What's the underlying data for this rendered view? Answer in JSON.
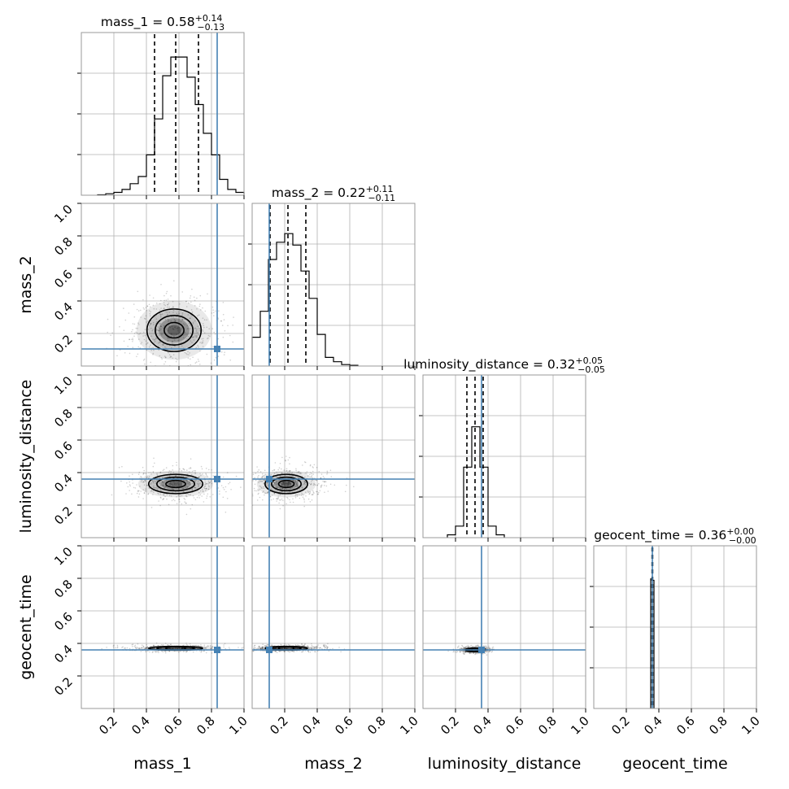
{
  "chart_data": {
    "type": "corner",
    "parameters": [
      "mass_1",
      "mass_2",
      "luminosity_distance",
      "geocent_time"
    ],
    "axis_labels": [
      "mass_1",
      "mass_2",
      "luminosity_distance",
      "geocent_time"
    ],
    "range": [
      0,
      1
    ],
    "ticks": [
      0.2,
      0.4,
      0.6,
      0.8,
      1.0
    ],
    "tick_labels": [
      "0.2",
      "0.4",
      "0.6",
      "0.8",
      "1.0"
    ],
    "grid": true,
    "colors": {
      "truth": "#4682b4",
      "hist": "#000000",
      "quantile": "#000000",
      "grid": "#b0b0b0",
      "frame": "#999999"
    },
    "truths": [
      0.835,
      0.105,
      0.36,
      0.36
    ],
    "summaries": [
      {
        "param": "mass_1",
        "prefix": "mass_1 = ",
        "median": "0.58",
        "plus": "+0.14",
        "minus": "−0.13",
        "quantiles": [
          0.45,
          0.58,
          0.72
        ]
      },
      {
        "param": "mass_2",
        "prefix": "mass_2 = ",
        "median": "0.22",
        "plus": "+0.11",
        "minus": "−0.11",
        "quantiles": [
          0.11,
          0.22,
          0.33
        ]
      },
      {
        "param": "luminosity_distance",
        "prefix": "luminosity_distance = ",
        "median": "0.32",
        "plus": "+0.05",
        "minus": "−0.05",
        "quantiles": [
          0.27,
          0.32,
          0.37
        ]
      },
      {
        "param": "geocent_time",
        "prefix": "geocent_time = ",
        "median": "0.36",
        "plus": "+0.00",
        "minus": "−0.00",
        "quantiles": [
          0.358,
          0.36,
          0.362
        ]
      }
    ],
    "histograms": [
      {
        "param": "mass_1",
        "bin_edges": [
          0.1,
          0.15,
          0.2,
          0.25,
          0.3,
          0.35,
          0.4,
          0.45,
          0.5,
          0.55,
          0.6,
          0.65,
          0.7,
          0.75,
          0.8,
          0.85,
          0.9,
          0.95,
          1.0
        ],
        "counts": [
          0.003,
          0.01,
          0.02,
          0.04,
          0.08,
          0.13,
          0.28,
          0.53,
          0.83,
          0.96,
          0.96,
          0.82,
          0.63,
          0.43,
          0.28,
          0.11,
          0.04,
          0.02
        ]
      },
      {
        "param": "mass_2",
        "bin_edges": [
          0.0,
          0.05,
          0.1,
          0.15,
          0.2,
          0.25,
          0.3,
          0.35,
          0.4,
          0.45,
          0.5,
          0.55,
          0.6,
          0.65
        ],
        "counts": [
          0.2,
          0.38,
          0.74,
          0.86,
          0.92,
          0.84,
          0.66,
          0.47,
          0.22,
          0.06,
          0.03,
          0.01,
          0.005
        ]
      },
      {
        "param": "luminosity_distance",
        "bin_edges": [
          0.15,
          0.2,
          0.25,
          0.3,
          0.35,
          0.4,
          0.45,
          0.5
        ],
        "counts": [
          0.02,
          0.08,
          0.49,
          0.77,
          0.49,
          0.08,
          0.02
        ]
      },
      {
        "param": "geocent_time",
        "bin_edges": [
          0.35,
          0.36,
          0.37
        ],
        "counts": [
          0.9,
          0.89
        ]
      }
    ],
    "contours_2d": [
      {
        "x": "mass_1",
        "y": "mass_2",
        "center": [
          0.57,
          0.22
        ],
        "sigma": [
          0.14,
          0.11
        ]
      },
      {
        "x": "mass_1",
        "y": "luminosity_distance",
        "center": [
          0.58,
          0.33
        ],
        "sigma": [
          0.14,
          0.05
        ]
      },
      {
        "x": "mass_2",
        "y": "luminosity_distance",
        "center": [
          0.21,
          0.33
        ],
        "sigma": [
          0.11,
          0.05
        ]
      },
      {
        "x": "mass_1",
        "y": "geocent_time",
        "center": [
          0.58,
          0.37
        ],
        "sigma": [
          0.14,
          0.01
        ]
      },
      {
        "x": "mass_2",
        "y": "geocent_time",
        "center": [
          0.21,
          0.37
        ],
        "sigma": [
          0.11,
          0.01
        ]
      },
      {
        "x": "luminosity_distance",
        "y": "geocent_time",
        "center": [
          0.32,
          0.36
        ],
        "sigma": [
          0.05,
          0.01
        ]
      }
    ],
    "contour_levels": [
      0.6,
      1.15,
      1.65
    ]
  }
}
